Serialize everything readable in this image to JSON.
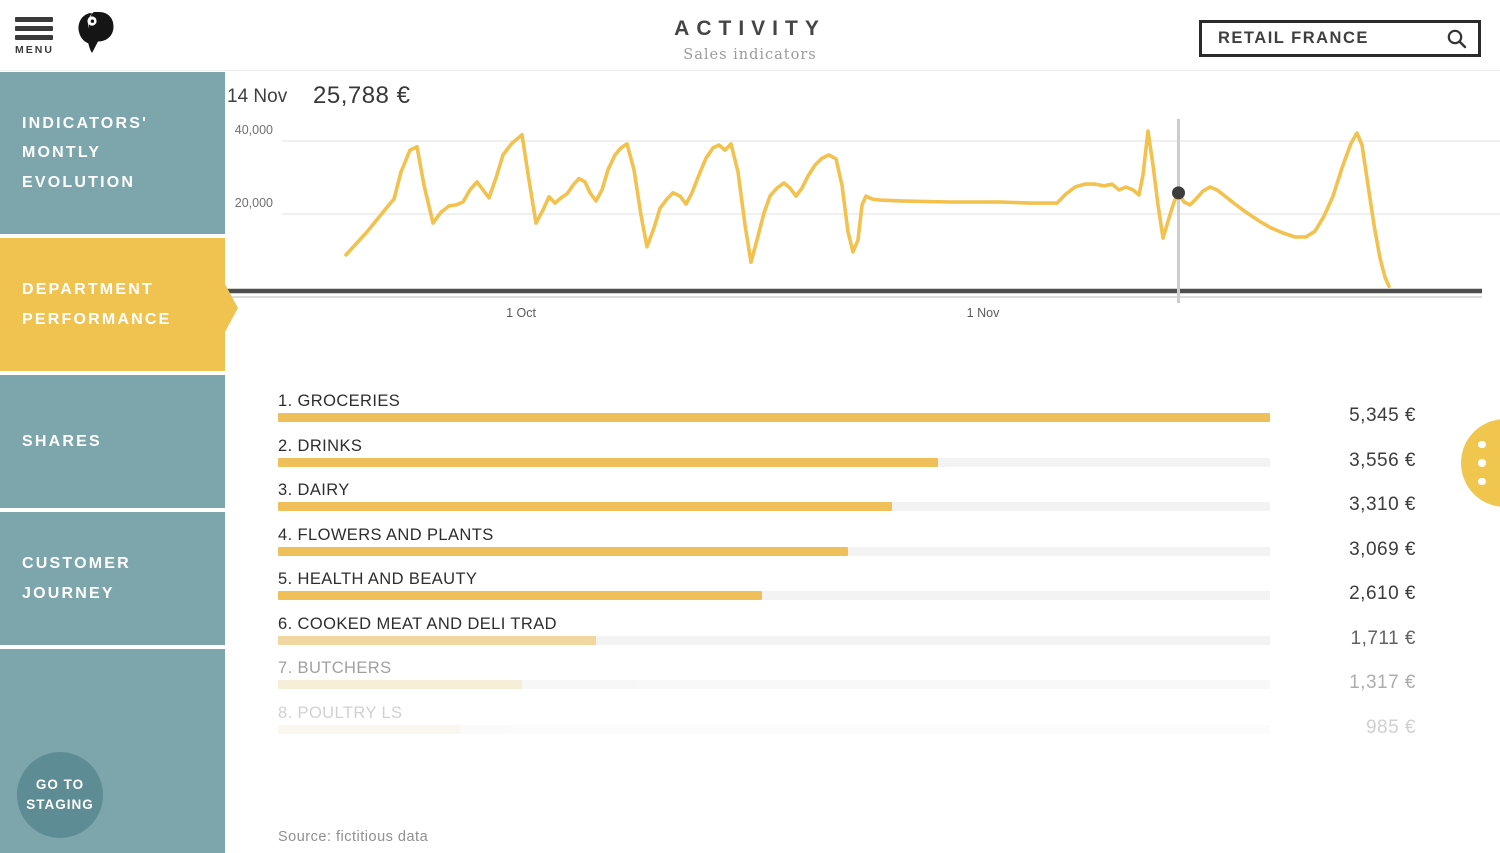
{
  "header": {
    "menu_label": "MENU",
    "title": "ACTIVITY",
    "subtitle": "Sales indicators",
    "search_value": "RETAIL FRANCE"
  },
  "sidebar": {
    "items": [
      {
        "id": "indicators-montly-evolution",
        "label_lines": [
          "INDICATORS'",
          "MONTLY",
          "EVOLUTION"
        ],
        "active": false
      },
      {
        "id": "department-performance",
        "label_lines": [
          "DEPARTMENT",
          "PERFORMANCE"
        ],
        "active": true
      },
      {
        "id": "shares",
        "label_lines": [
          "SHARES"
        ],
        "active": false
      },
      {
        "id": "customer-journey",
        "label_lines": [
          "CUSTOMER",
          "JOURNEY"
        ],
        "active": false
      }
    ],
    "staging_button": {
      "label_lines": [
        "GO TO",
        "STAGING"
      ]
    }
  },
  "colors": {
    "teal": "#7DA6AC",
    "teal_dark": "#5E8C94",
    "accent_yellow": "#F0C351",
    "line_yellow": "#F2C14E",
    "bar_yellow": "#EFC05A",
    "cursor_gray": "#cdcdcd",
    "dot_gray": "#3d3d3d"
  },
  "chart": {
    "selected_date": "14 Nov",
    "selected_value": "25,788 €",
    "y_ticks": [
      {
        "label": "40,000",
        "value": 40000
      },
      {
        "label": "20,000",
        "value": 20000
      }
    ],
    "x_ticks": [
      {
        "label": "1 Oct",
        "x": 521
      },
      {
        "label": "1 Nov",
        "x": 983
      }
    ],
    "cursor_x": 1178.5,
    "dot": {
      "x": 1178.5,
      "value": 25788
    }
  },
  "chart_data": [
    {
      "type": "line",
      "title": "Sales indicators evolution (daily)",
      "ylabel": "",
      "xlabel": "",
      "x_tick_labels": [
        "1 Oct",
        "1 Nov"
      ],
      "y_tick_values": [
        20000,
        40000
      ],
      "ylim": [
        0,
        44000
      ],
      "grid": true,
      "highlight_point": {
        "date": "14 Nov",
        "value": 25788,
        "display": "25,788 €"
      },
      "points": [
        [
          346,
          8800
        ],
        [
          367,
          15100
        ],
        [
          388,
          22200
        ],
        [
          394,
          24100
        ],
        [
          401,
          31500
        ],
        [
          410,
          37500
        ],
        [
          417,
          38400
        ],
        [
          424,
          27900
        ],
        [
          433,
          17500
        ],
        [
          441,
          20500
        ],
        [
          449,
          22200
        ],
        [
          456,
          22500
        ],
        [
          463,
          23300
        ],
        [
          470,
          26600
        ],
        [
          477,
          28800
        ],
        [
          483,
          26600
        ],
        [
          489,
          24400
        ],
        [
          496,
          29900
        ],
        [
          503,
          36200
        ],
        [
          512,
          39400
        ],
        [
          522,
          41700
        ],
        [
          529,
          29300
        ],
        [
          536,
          17500
        ],
        [
          543,
          21100
        ],
        [
          549,
          24700
        ],
        [
          555,
          23000
        ],
        [
          561,
          24400
        ],
        [
          567,
          25500
        ],
        [
          573,
          27900
        ],
        [
          579,
          29700
        ],
        [
          585,
          28800
        ],
        [
          590,
          25800
        ],
        [
          596,
          23600
        ],
        [
          602,
          26600
        ],
        [
          608,
          32100
        ],
        [
          615,
          36200
        ],
        [
          621,
          38100
        ],
        [
          627,
          39200
        ],
        [
          634,
          32100
        ],
        [
          641,
          19700
        ],
        [
          647,
          11000
        ],
        [
          654,
          16200
        ],
        [
          660,
          21600
        ],
        [
          667,
          24100
        ],
        [
          673,
          25800
        ],
        [
          680,
          24900
        ],
        [
          686,
          22700
        ],
        [
          692,
          25800
        ],
        [
          699,
          30700
        ],
        [
          706,
          35300
        ],
        [
          713,
          38100
        ],
        [
          719,
          38900
        ],
        [
          725,
          37500
        ],
        [
          731,
          39200
        ],
        [
          738,
          31500
        ],
        [
          745,
          17000
        ],
        [
          751,
          6800
        ],
        [
          757,
          12900
        ],
        [
          764,
          20300
        ],
        [
          770,
          24900
        ],
        [
          777,
          27100
        ],
        [
          784,
          28500
        ],
        [
          790,
          27100
        ],
        [
          796,
          24900
        ],
        [
          802,
          27100
        ],
        [
          808,
          30400
        ],
        [
          815,
          33400
        ],
        [
          822,
          35300
        ],
        [
          829,
          36200
        ],
        [
          836,
          35100
        ],
        [
          842,
          27900
        ],
        [
          848,
          15100
        ],
        [
          853,
          9600
        ],
        [
          858,
          12900
        ],
        [
          862,
          22500
        ],
        [
          866,
          24900
        ],
        [
          872,
          24100
        ],
        [
          880,
          23800
        ],
        [
          900,
          23600
        ],
        [
          950,
          23300
        ],
        [
          1000,
          23300
        ],
        [
          1030,
          23000
        ],
        [
          1057,
          23000
        ],
        [
          1066,
          25500
        ],
        [
          1075,
          27400
        ],
        [
          1085,
          28200
        ],
        [
          1095,
          28200
        ],
        [
          1104,
          27700
        ],
        [
          1112,
          28200
        ],
        [
          1119,
          26600
        ],
        [
          1126,
          27400
        ],
        [
          1133,
          26600
        ],
        [
          1139,
          25200
        ],
        [
          1143,
          30700
        ],
        [
          1148,
          42700
        ],
        [
          1153,
          33400
        ],
        [
          1158,
          22500
        ],
        [
          1163,
          13400
        ],
        [
          1169,
          18900
        ],
        [
          1174,
          23300
        ],
        [
          1178,
          25788
        ],
        [
          1184,
          23300
        ],
        [
          1190,
          22500
        ],
        [
          1196,
          24100
        ],
        [
          1203,
          26300
        ],
        [
          1210,
          27400
        ],
        [
          1217,
          26600
        ],
        [
          1225,
          24900
        ],
        [
          1235,
          22700
        ],
        [
          1247,
          20300
        ],
        [
          1259,
          18100
        ],
        [
          1271,
          16200
        ],
        [
          1283,
          14800
        ],
        [
          1295,
          13700
        ],
        [
          1306,
          13700
        ],
        [
          1315,
          15300
        ],
        [
          1324,
          19400
        ],
        [
          1333,
          24900
        ],
        [
          1342,
          32600
        ],
        [
          1351,
          39400
        ],
        [
          1357,
          42200
        ],
        [
          1362,
          38900
        ],
        [
          1368,
          27900
        ],
        [
          1374,
          17000
        ],
        [
          1380,
          7900
        ],
        [
          1385,
          2700
        ],
        [
          1389,
          200
        ]
      ]
    },
    {
      "type": "bar",
      "title": "Department performance",
      "categories": [
        "GROCERIES",
        "DRINKS",
        "DAIRY",
        "FLOWERS AND PLANTS",
        "HEALTH AND BEAUTY",
        "COOKED MEAT AND DELI TRAD",
        "BUTCHERS",
        "POULTRY LS"
      ],
      "values": [
        5345,
        3556,
        3310,
        3069,
        2610,
        1711,
        1317,
        985
      ],
      "unit": "€"
    }
  ],
  "departments": {
    "max_value": 5345,
    "rows": [
      {
        "rank": 1,
        "name": "GROCERIES",
        "value": 5345,
        "value_label": "5,345 €"
      },
      {
        "rank": 2,
        "name": "DRINKS",
        "value": 3556,
        "value_label": "3,556 €"
      },
      {
        "rank": 3,
        "name": "DAIRY",
        "value": 3310,
        "value_label": "3,310 €"
      },
      {
        "rank": 4,
        "name": "FLOWERS AND PLANTS",
        "value": 3069,
        "value_label": "3,069 €"
      },
      {
        "rank": 5,
        "name": "HEALTH AND BEAUTY",
        "value": 2610,
        "value_label": "2,610 €"
      },
      {
        "rank": 6,
        "name": "COOKED MEAT AND DELI TRAD",
        "value": 1711,
        "value_label": "1,711 €"
      },
      {
        "rank": 7,
        "name": "BUTCHERS",
        "value": 1317,
        "value_label": "1,317 €"
      },
      {
        "rank": 8,
        "name": "POULTRY LS",
        "value": 985,
        "value_label": "985 €"
      }
    ]
  },
  "footer": {
    "source": "Source: fictitious data"
  }
}
